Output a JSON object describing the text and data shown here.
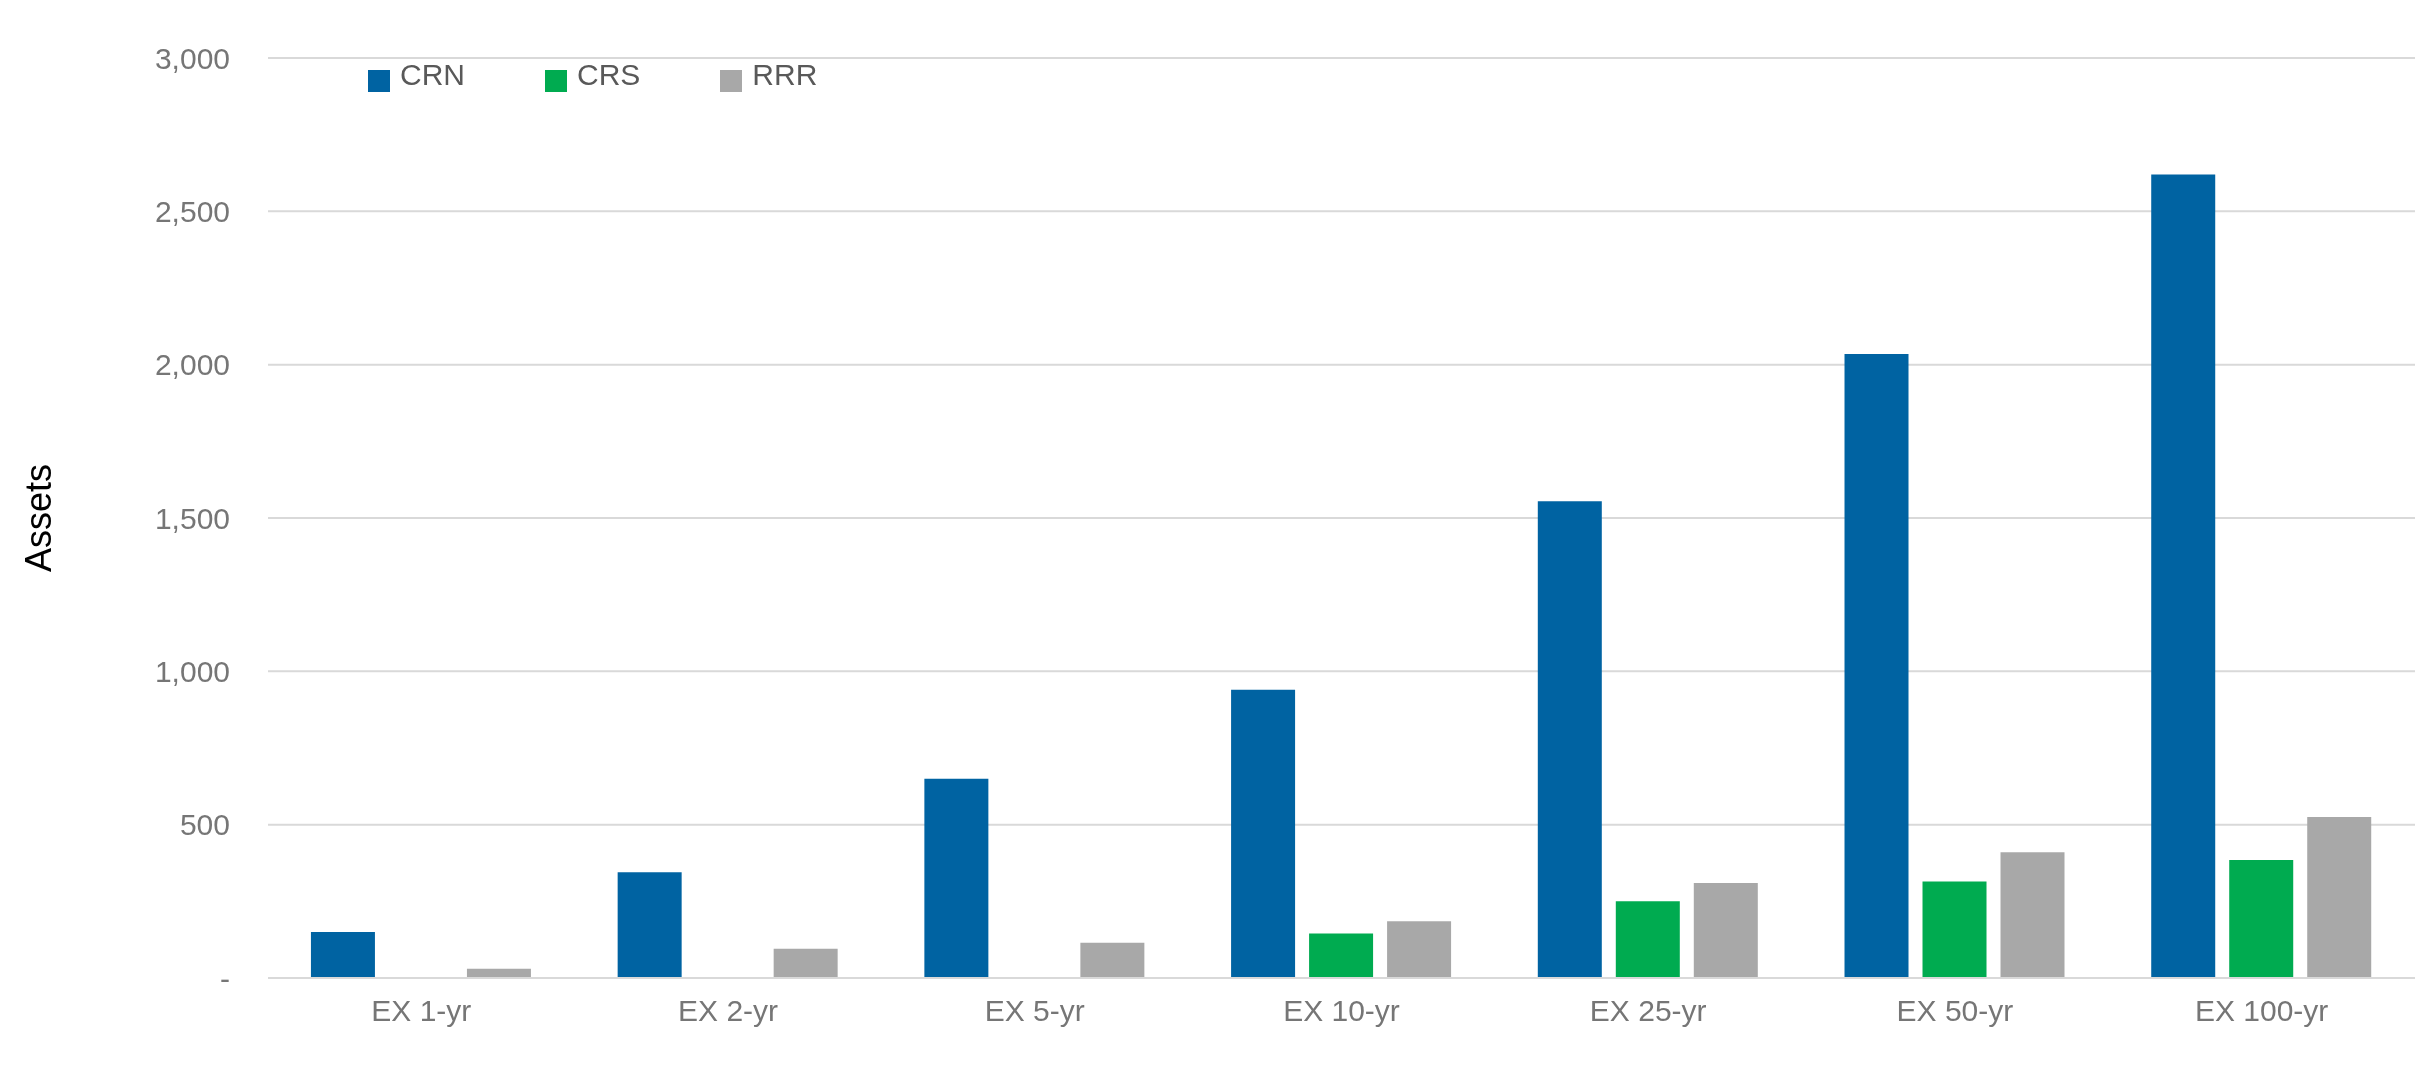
{
  "chart_data": {
    "type": "bar",
    "ylabel": "Assets",
    "categories": [
      "EX 1-yr",
      "EX 2-yr",
      "EX 5-yr",
      "EX 10-yr",
      "EX 25-yr",
      "EX 50-yr",
      "EX 100-yr"
    ],
    "series": [
      {
        "name": "CRN",
        "color": "#0063a2",
        "values": [
          150,
          345,
          650,
          940,
          1555,
          2035,
          2620
        ]
      },
      {
        "name": "CRS",
        "color": "#00ab50",
        "values": [
          0,
          0,
          0,
          145,
          250,
          315,
          385
        ]
      },
      {
        "name": "RRR",
        "color": "#a8a8a8",
        "values": [
          30,
          95,
          115,
          185,
          310,
          410,
          525
        ]
      }
    ],
    "ylim": [
      0,
      3000
    ],
    "yticks": [
      {
        "value": 0,
        "label": "-"
      },
      500,
      {
        "value": 1000,
        "label": "1,000"
      },
      {
        "value": 1500,
        "label": "1,500"
      },
      {
        "value": 2000,
        "label": "2,000"
      },
      {
        "value": 2500,
        "label": "2,500"
      },
      {
        "value": 3000,
        "label": "3,000"
      }
    ],
    "grid": "y",
    "legend": "top left"
  }
}
